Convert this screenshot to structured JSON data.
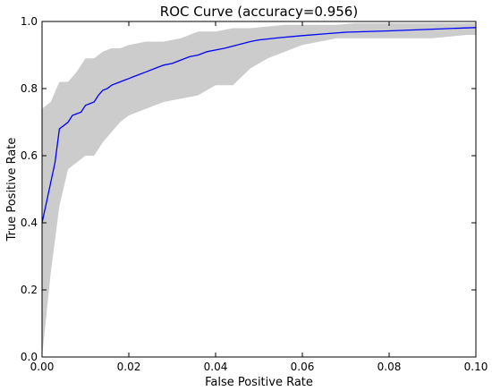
{
  "chart_data": {
    "type": "line",
    "title": "ROC Curve (accuracy=0.956)",
    "xlabel": "False Positive Rate",
    "ylabel": "True Positive Rate",
    "xlim": [
      0.0,
      0.1
    ],
    "ylim": [
      0.0,
      1.0
    ],
    "x_ticks": [
      0.0,
      0.02,
      0.04,
      0.06,
      0.08,
      0.1
    ],
    "x_tick_labels": [
      "0.00",
      "0.02",
      "0.04",
      "0.06",
      "0.08",
      "0.10"
    ],
    "y_ticks": [
      0.0,
      0.2,
      0.4,
      0.6,
      0.8,
      1.0
    ],
    "y_tick_labels": [
      "0.0",
      "0.2",
      "0.4",
      "0.6",
      "0.8",
      "1.0"
    ],
    "grid": false,
    "legend": "none",
    "colors": {
      "line": "#0000ff",
      "band": "#cccccc",
      "axes": "#000000"
    },
    "series": [
      {
        "x": [
          0.0,
          0.001,
          0.002,
          0.003,
          0.004,
          0.005,
          0.006,
          0.007,
          0.008,
          0.009,
          0.01,
          0.011,
          0.012,
          0.013,
          0.014,
          0.015,
          0.016,
          0.017,
          0.018,
          0.019,
          0.02,
          0.021,
          0.022,
          0.024,
          0.026,
          0.028,
          0.03,
          0.032,
          0.034,
          0.036,
          0.038,
          0.04,
          0.042,
          0.045,
          0.048,
          0.05,
          0.055,
          0.06,
          0.065,
          0.07,
          0.08,
          0.09,
          0.1
        ],
        "values": [
          0.4,
          0.46,
          0.52,
          0.58,
          0.68,
          0.69,
          0.7,
          0.72,
          0.725,
          0.73,
          0.75,
          0.755,
          0.76,
          0.78,
          0.795,
          0.8,
          0.81,
          0.815,
          0.82,
          0.825,
          0.83,
          0.835,
          0.84,
          0.85,
          0.86,
          0.87,
          0.875,
          0.885,
          0.895,
          0.9,
          0.91,
          0.915,
          0.92,
          0.93,
          0.94,
          0.945,
          0.952,
          0.958,
          0.963,
          0.968,
          0.972,
          0.977,
          0.982
        ]
      }
    ],
    "confidence_band": {
      "x": [
        0.0,
        0.002,
        0.004,
        0.006,
        0.008,
        0.01,
        0.012,
        0.014,
        0.016,
        0.018,
        0.02,
        0.024,
        0.028,
        0.032,
        0.036,
        0.04,
        0.044,
        0.048,
        0.052,
        0.056,
        0.06,
        0.064,
        0.068,
        0.072,
        0.08,
        0.09,
        0.098,
        0.1
      ],
      "upper": [
        0.74,
        0.76,
        0.82,
        0.82,
        0.85,
        0.89,
        0.89,
        0.91,
        0.92,
        0.92,
        0.93,
        0.94,
        0.94,
        0.95,
        0.97,
        0.97,
        0.98,
        0.98,
        0.985,
        0.99,
        0.99,
        0.99,
        0.99,
        0.995,
        0.995,
        0.995,
        0.995,
        0.995
      ],
      "lower": [
        0.0,
        0.25,
        0.45,
        0.56,
        0.58,
        0.6,
        0.6,
        0.64,
        0.67,
        0.7,
        0.72,
        0.74,
        0.76,
        0.77,
        0.78,
        0.81,
        0.81,
        0.86,
        0.89,
        0.91,
        0.93,
        0.94,
        0.95,
        0.95,
        0.95,
        0.95,
        0.96,
        0.96
      ]
    }
  }
}
